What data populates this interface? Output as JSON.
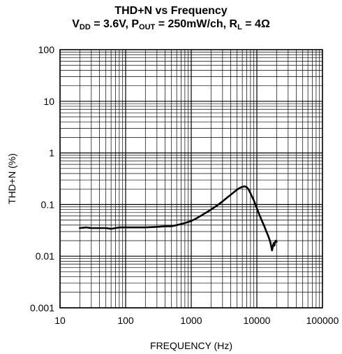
{
  "title": {
    "line1": "THD+N vs Frequency",
    "line2_parts": [
      "V",
      "DD",
      " = 3.6V, P",
      "OUT",
      " = 250mW/ch, R",
      "L",
      " = 4Ω"
    ]
  },
  "chart_data": {
    "type": "line",
    "title": "THD+N vs Frequency",
    "subtitle": "VDD = 3.6V, POUT = 250mW/ch, RL = 4Ω",
    "xlabel": "FREQUENCY (Hz)",
    "ylabel": "THD+N (%)",
    "xscale": "log",
    "yscale": "log",
    "xlim": [
      10,
      100000
    ],
    "ylim": [
      0.001,
      100
    ],
    "grid": true,
    "x_tick_labels": [
      "10",
      "100",
      "1000",
      "10000",
      "100000"
    ],
    "x_tick_values": [
      10,
      100,
      1000,
      10000,
      100000
    ],
    "y_tick_labels": [
      "0.001",
      "0.01",
      "0.1",
      "1",
      "10",
      "100"
    ],
    "y_tick_values": [
      0.001,
      0.01,
      0.1,
      1,
      10,
      100
    ],
    "series": [
      {
        "color": "#000000",
        "x": [
          20,
          25,
          30,
          40,
          50,
          60,
          70,
          80,
          100,
          130,
          150,
          200,
          300,
          400,
          500,
          600,
          700,
          800,
          1000,
          1200,
          1500,
          2000,
          2500,
          3000,
          3500,
          4000,
          4500,
          5000,
          5500,
          6000,
          6500,
          7000,
          7500,
          8000,
          9000,
          10000,
          11000,
          12000,
          13000,
          14000,
          15000,
          16000,
          16500,
          17000,
          17500,
          18000,
          18500,
          19000,
          19500,
          20000
        ],
        "y": [
          0.035,
          0.036,
          0.035,
          0.035,
          0.035,
          0.034,
          0.035,
          0.036,
          0.036,
          0.036,
          0.036,
          0.036,
          0.037,
          0.038,
          0.038,
          0.04,
          0.042,
          0.044,
          0.048,
          0.054,
          0.064,
          0.08,
          0.097,
          0.115,
          0.135,
          0.155,
          0.175,
          0.195,
          0.21,
          0.22,
          0.225,
          0.218,
          0.195,
          0.165,
          0.12,
          0.085,
          0.062,
          0.048,
          0.038,
          0.03,
          0.024,
          0.019,
          0.016,
          0.013,
          0.015,
          0.018,
          0.016,
          0.019,
          0.02,
          0.019
        ]
      }
    ]
  }
}
